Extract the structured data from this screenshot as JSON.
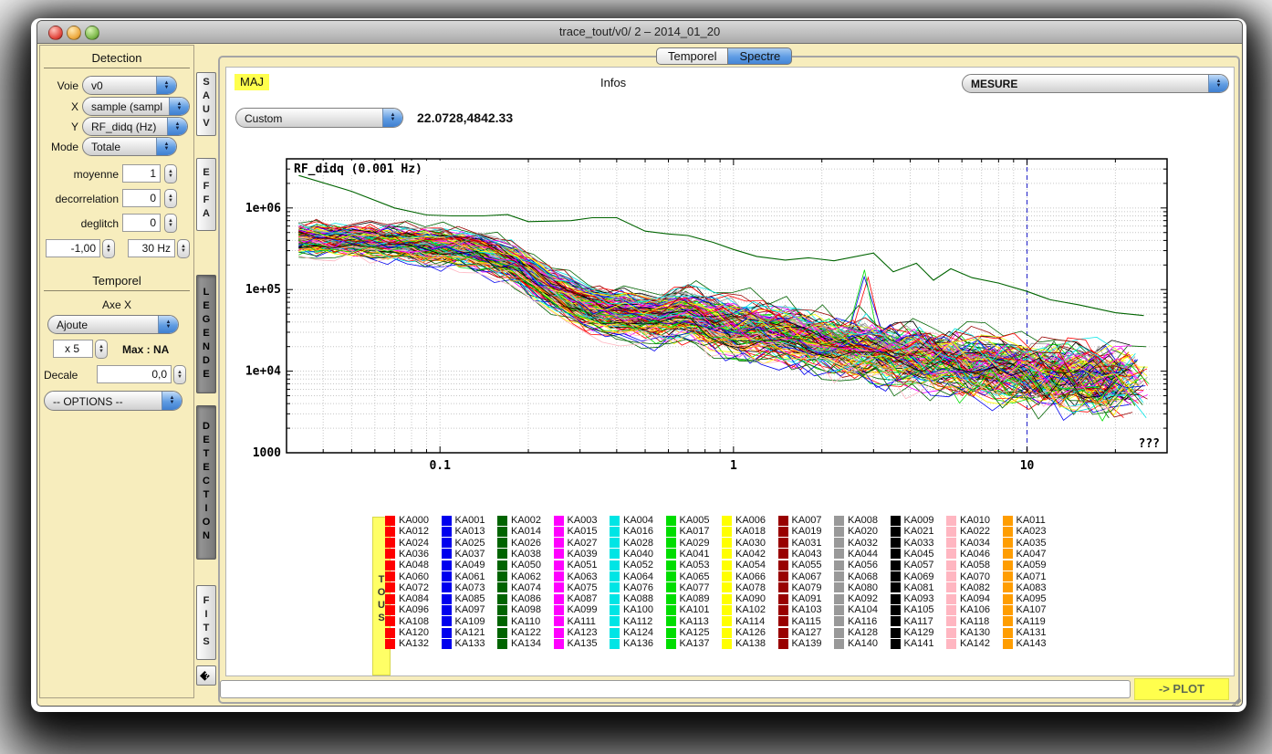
{
  "window": {
    "title": "trace_tout/v0/ 2 – 2014_01_20"
  },
  "sidebar": {
    "detection_title": "Detection",
    "voie": {
      "label": "Voie",
      "value": "v0"
    },
    "x": {
      "label": "X",
      "value": "sample (sampl"
    },
    "y": {
      "label": "Y",
      "value": "RF_didq (Hz)"
    },
    "mode": {
      "label": "Mode",
      "value": "Totale"
    },
    "moyenne": {
      "label": "moyenne",
      "value": "1"
    },
    "decorrelation": {
      "label": "decorrelation",
      "value": "0"
    },
    "deglitch": {
      "label": "deglitch",
      "value": "0"
    },
    "seuil_value": "-1,00",
    "freq_value": "30 Hz",
    "temporel_title": "Temporel",
    "axe_x_label": "Axe X",
    "ajoute_value": "Ajoute",
    "mult_value": "x 5",
    "max_label": "Max : NA",
    "decale": {
      "label": "Decale",
      "value": "0,0"
    },
    "options_value": "-- OPTIONS --"
  },
  "side_tabs": {
    "items": [
      {
        "label": "SAUV",
        "pressed": false
      },
      {
        "label": "EFFA",
        "pressed": false
      },
      {
        "label": "LEGENDE",
        "pressed": true
      },
      {
        "label": "DETECTION",
        "pressed": true
      },
      {
        "label": "FITS",
        "pressed": false
      }
    ],
    "help_icon": "?"
  },
  "main": {
    "view_tabs": [
      {
        "label": "Temporel",
        "active": false
      },
      {
        "label": "Spectre",
        "active": true
      }
    ],
    "maj": "MAJ",
    "infos": "Infos",
    "mesure_value": "MESURE",
    "scale_value": "Custom",
    "cursor_coords": "22.0728,4842.33",
    "command_value": "",
    "plot_button": "-> PLOT"
  },
  "legend": {
    "tous": "TOUS",
    "columns": 12,
    "colors": [
      "#ff0000",
      "#0000ee",
      "#006400",
      "#ff00ff",
      "#00e5e5",
      "#00dd00",
      "#ffff00",
      "#990000",
      "#999999",
      "#000000",
      "#ffb6c1",
      "#ff9d00"
    ],
    "labels": [
      "KA000",
      "KA001",
      "KA002",
      "KA003",
      "KA004",
      "KA005",
      "KA006",
      "KA007",
      "KA008",
      "KA009",
      "KA010",
      "KA011",
      "KA012",
      "KA013",
      "KA014",
      "KA015",
      "KA016",
      "KA017",
      "KA018",
      "KA019",
      "KA020",
      "KA021",
      "KA022",
      "KA023",
      "KA024",
      "KA025",
      "KA026",
      "KA027",
      "KA028",
      "KA029",
      "KA030",
      "KA031",
      "KA032",
      "KA033",
      "KA034",
      "KA035",
      "KA036",
      "KA037",
      "KA038",
      "KA039",
      "KA040",
      "KA041",
      "KA042",
      "KA043",
      "KA044",
      "KA045",
      "KA046",
      "KA047",
      "KA048",
      "KA049",
      "KA050",
      "KA051",
      "KA052",
      "KA053",
      "KA054",
      "KA055",
      "KA056",
      "KA057",
      "KA058",
      "KA059",
      "KA060",
      "KA061",
      "KA062",
      "KA063",
      "KA064",
      "KA065",
      "KA066",
      "KA067",
      "KA068",
      "KA069",
      "KA070",
      "KA071",
      "KA072",
      "KA073",
      "KA074",
      "KA075",
      "KA076",
      "KA077",
      "KA078",
      "KA079",
      "KA080",
      "KA081",
      "KA082",
      "KA083",
      "KA084",
      "KA085",
      "KA086",
      "KA087",
      "KA088",
      "KA089",
      "KA090",
      "KA091",
      "KA092",
      "KA093",
      "KA094",
      "KA095",
      "KA096",
      "KA097",
      "KA098",
      "KA099",
      "KA100",
      "KA101",
      "KA102",
      "KA103",
      "KA104",
      "KA105",
      "KA106",
      "KA107",
      "KA108",
      "KA109",
      "KA110",
      "KA111",
      "KA112",
      "KA113",
      "KA114",
      "KA115",
      "KA116",
      "KA117",
      "KA118",
      "KA119",
      "KA120",
      "KA121",
      "KA122",
      "KA123",
      "KA124",
      "KA125",
      "KA126",
      "KA127",
      "KA128",
      "KA129",
      "KA130",
      "KA131",
      "KA132",
      "KA133",
      "KA134",
      "KA135",
      "KA136",
      "KA137",
      "KA138",
      "KA139",
      "KA140",
      "KA141",
      "KA142",
      "KA143"
    ]
  },
  "chart_data": {
    "type": "line",
    "title": "RF_didq (0.001 Hz)",
    "xscale": "log",
    "yscale": "log",
    "xlim": [
      0.03,
      30
    ],
    "ylim": [
      1000,
      4000000
    ],
    "xticks": [
      0.1,
      1,
      10
    ],
    "xtick_labels": [
      "0.1",
      "1",
      "10"
    ],
    "yticks": [
      1000,
      10000,
      100000,
      1000000
    ],
    "ytick_labels": [
      "1000",
      "1e+04",
      "1e+05",
      "1e+06"
    ],
    "grid": "dotted minor+major log grid",
    "unknown_label": "???",
    "cursor_line": {
      "x": 10,
      "style": "dashed",
      "color": "#3333cc"
    },
    "outlier_series": {
      "name": "high outlier channel",
      "color": "#006400",
      "points": [
        [
          0.033,
          2500000
        ],
        [
          0.05,
          1600000
        ],
        [
          0.07,
          1000000
        ],
        [
          0.09,
          820000
        ],
        [
          0.11,
          800000
        ],
        [
          0.14,
          800000
        ],
        [
          0.17,
          830000
        ],
        [
          0.2,
          680000
        ],
        [
          0.28,
          700000
        ],
        [
          0.33,
          760000
        ],
        [
          0.4,
          760000
        ],
        [
          0.5,
          520000
        ],
        [
          0.6,
          480000
        ],
        [
          0.7,
          460000
        ],
        [
          0.85,
          380000
        ],
        [
          1.0,
          310000
        ],
        [
          1.2,
          255000
        ],
        [
          1.5,
          230000
        ],
        [
          1.8,
          245000
        ],
        [
          2.2,
          225000
        ],
        [
          3.0,
          280000
        ],
        [
          3.5,
          165000
        ],
        [
          4.2,
          210000
        ],
        [
          4.8,
          130000
        ],
        [
          5.5,
          180000
        ],
        [
          6.5,
          140000
        ],
        [
          8.0,
          120000
        ],
        [
          10,
          95000
        ],
        [
          12,
          75000
        ],
        [
          15,
          65000
        ],
        [
          20,
          52000
        ],
        [
          25,
          48000
        ]
      ]
    },
    "band": {
      "description": "143 noisy channel spectra (KA channels), colors cycle through legend palette",
      "n_series": 143,
      "x_range": [
        0.033,
        24
      ],
      "median_points": [
        [
          0.033,
          420000
        ],
        [
          0.06,
          380000
        ],
        [
          0.09,
          330000
        ],
        [
          0.13,
          300000
        ],
        [
          0.18,
          200000
        ],
        [
          0.25,
          90000
        ],
        [
          0.32,
          55000
        ],
        [
          0.42,
          48000
        ],
        [
          0.55,
          42000
        ],
        [
          0.7,
          50000
        ],
        [
          0.9,
          35000
        ],
        [
          1.2,
          30000
        ],
        [
          1.6,
          25000
        ],
        [
          2.2,
          20000
        ],
        [
          3.0,
          17000
        ],
        [
          4.0,
          14000
        ],
        [
          5.5,
          12000
        ],
        [
          7.5,
          10000
        ],
        [
          10,
          9000
        ],
        [
          14,
          8000
        ],
        [
          19,
          7500
        ],
        [
          24,
          7000
        ]
      ],
      "spread_decades": 0.42,
      "spike": {
        "x": 2.9,
        "series": [
          0,
          1,
          5
        ],
        "boost_decades": 0.9
      }
    }
  }
}
